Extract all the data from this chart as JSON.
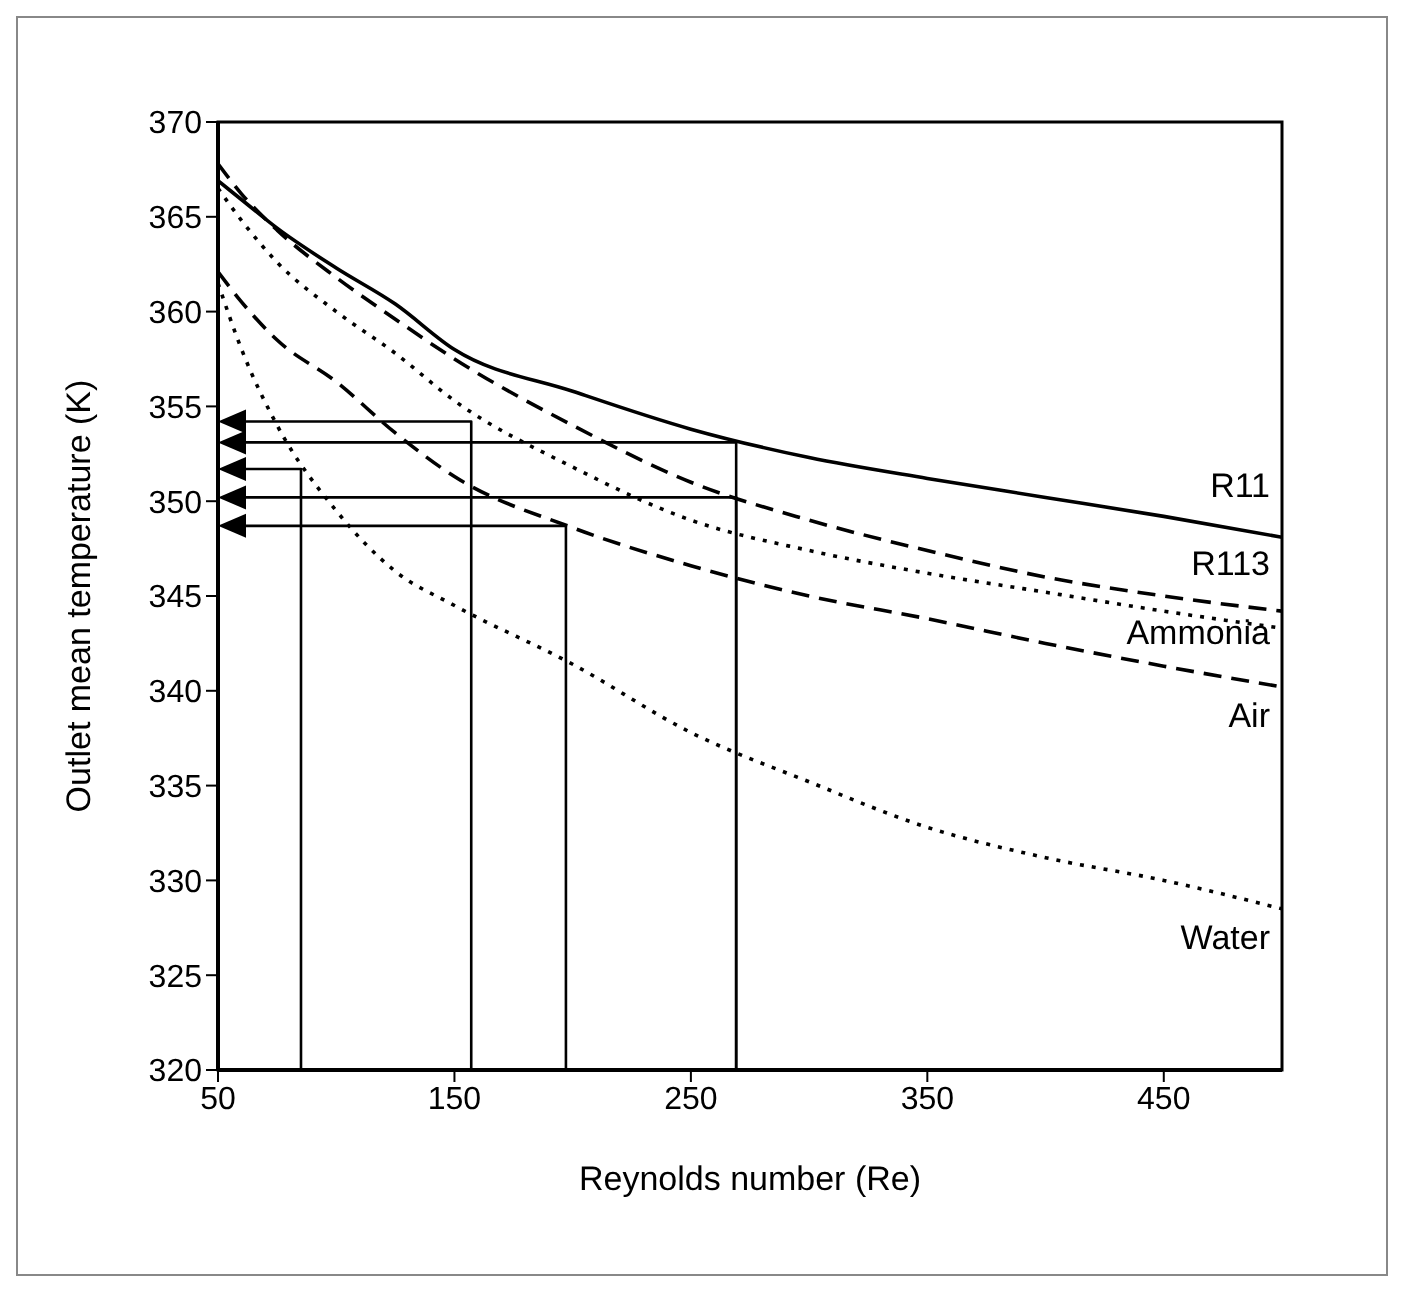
{
  "chart_data": {
    "type": "line",
    "xlabel": "Reynolds number (Re)",
    "ylabel": "Outlet mean temperature (K)",
    "xlim": [
      50,
      500
    ],
    "xticks": [
      50,
      150,
      250,
      350,
      450
    ],
    "ylim": [
      320,
      370
    ],
    "yticks": [
      320,
      325,
      330,
      335,
      340,
      345,
      350,
      355,
      360,
      365,
      370
    ],
    "x": [
      50,
      60,
      75,
      100,
      125,
      150,
      200,
      250,
      300,
      350,
      400,
      450,
      500
    ],
    "grid": false,
    "legend": false,
    "series": [
      {
        "name": "R11",
        "color": "#000000",
        "line_style": "solid",
        "values": [
          366.9,
          365.9,
          364.4,
          362.3,
          360.4,
          358.0,
          355.8,
          353.8,
          352.3,
          351.2,
          350.2,
          349.2,
          348.1
        ]
      },
      {
        "name": "R113",
        "color": "#000000",
        "line_style": "dashed",
        "values": [
          367.8,
          366.2,
          364.3,
          361.8,
          359.6,
          357.5,
          354.0,
          351.0,
          349.0,
          347.4,
          346.0,
          345.0,
          344.2
        ]
      },
      {
        "name": "Ammonia",
        "color": "#000000",
        "line_style": "dotted",
        "values": [
          366.5,
          364.8,
          362.6,
          360.0,
          357.8,
          355.3,
          351.8,
          349.0,
          347.4,
          346.2,
          345.2,
          344.2,
          343.3
        ]
      },
      {
        "name": "Air",
        "color": "#000000",
        "line_style": "dashed",
        "values": [
          362.1,
          360.5,
          358.5,
          356.3,
          353.6,
          351.3,
          348.6,
          346.6,
          345.0,
          343.8,
          342.5,
          341.3,
          340.2
        ]
      },
      {
        "name": "Water",
        "color": "#000000",
        "line_style": "dotted",
        "values": [
          361.5,
          358.0,
          354.0,
          349.5,
          346.3,
          344.5,
          341.4,
          337.8,
          335.2,
          332.8,
          331.2,
          330.0,
          328.5
        ]
      }
    ]
  }
}
